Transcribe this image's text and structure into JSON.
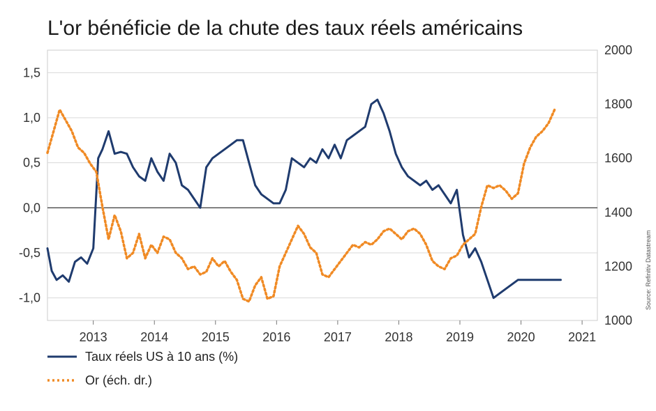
{
  "chart_data": {
    "type": "line",
    "title": "L'or bénéficie de la chute des taux réels américains",
    "source": "Source: Refinitiv Datastream",
    "x_ticks": [
      "2013",
      "2014",
      "2015",
      "2016",
      "2017",
      "2018",
      "2019",
      "2020",
      "2021"
    ],
    "y_left": {
      "ticks": [
        "1,5",
        "1,0",
        "0,5",
        "0,0",
        "-0,5",
        "-1,0"
      ],
      "values": [
        1.5,
        1.0,
        0.5,
        0.0,
        -0.5,
        -1.0
      ],
      "lim": [
        -1.25,
        1.75
      ]
    },
    "y_right": {
      "ticks": [
        "2000",
        "1800",
        "1600",
        "1400",
        "1200",
        "1000"
      ],
      "values": [
        2000,
        1800,
        1600,
        1400,
        1200,
        1000
      ],
      "lim": [
        1000,
        2000
      ]
    },
    "xlim": [
      2012.25,
      2021.25
    ],
    "grid": "horizontal",
    "legend": "bottom-left",
    "series": [
      {
        "name": "Taux réels US à 10 ans (%)",
        "axis": "left",
        "color": "#1f3b6e",
        "style": "solid",
        "x": [
          2012.25,
          2012.32,
          2012.4,
          2012.5,
          2012.6,
          2012.7,
          2012.8,
          2012.9,
          2013.0,
          2013.08,
          2013.15,
          2013.25,
          2013.35,
          2013.45,
          2013.55,
          2013.65,
          2013.75,
          2013.85,
          2013.95,
          2014.05,
          2014.15,
          2014.25,
          2014.35,
          2014.45,
          2014.55,
          2014.65,
          2014.75,
          2014.85,
          2014.95,
          2015.05,
          2015.15,
          2015.25,
          2015.35,
          2015.45,
          2015.55,
          2015.65,
          2015.75,
          2015.85,
          2015.95,
          2016.05,
          2016.15,
          2016.25,
          2016.35,
          2016.45,
          2016.55,
          2016.65,
          2016.75,
          2016.85,
          2016.95,
          2017.05,
          2017.15,
          2017.25,
          2017.35,
          2017.45,
          2017.55,
          2017.65,
          2017.75,
          2017.85,
          2017.95,
          2018.05,
          2018.15,
          2018.25,
          2018.35,
          2018.45,
          2018.55,
          2018.65,
          2018.75,
          2018.85,
          2018.95,
          2019.05,
          2019.15,
          2019.25,
          2019.35,
          2019.45,
          2019.55,
          2019.65,
          2019.75,
          2019.85,
          2019.95,
          2020.05,
          2020.15,
          2020.25,
          2020.35,
          2020.45,
          2020.55,
          2020.65
        ],
        "y": [
          -0.45,
          -0.7,
          -0.8,
          -0.75,
          -0.82,
          -0.6,
          -0.55,
          -0.62,
          -0.45,
          0.55,
          0.65,
          0.85,
          0.6,
          0.62,
          0.6,
          0.45,
          0.35,
          0.3,
          0.55,
          0.4,
          0.3,
          0.6,
          0.5,
          0.25,
          0.2,
          0.1,
          0.0,
          0.45,
          0.55,
          0.6,
          0.65,
          0.7,
          0.75,
          0.75,
          0.5,
          0.25,
          0.15,
          0.1,
          0.05,
          0.05,
          0.2,
          0.55,
          0.5,
          0.45,
          0.55,
          0.5,
          0.65,
          0.55,
          0.7,
          0.55,
          0.75,
          0.8,
          0.85,
          0.9,
          1.15,
          1.2,
          1.05,
          0.85,
          0.6,
          0.45,
          0.35,
          0.3,
          0.25,
          0.3,
          0.2,
          0.25,
          0.15,
          0.05,
          0.2,
          -0.3,
          -0.55,
          -0.45,
          -0.6,
          -0.8,
          -1.0,
          -0.95,
          -0.9,
          -0.85,
          -0.8,
          -0.8,
          -0.8,
          -0.8,
          -0.8,
          -0.8,
          -0.8,
          -0.8
        ]
      },
      {
        "name": "Or (éch. dr.)",
        "axis": "right",
        "color": "#f08a24",
        "style": "dotted",
        "x": [
          2012.25,
          2012.35,
          2012.45,
          2012.55,
          2012.65,
          2012.75,
          2012.85,
          2012.95,
          2013.05,
          2013.15,
          2013.25,
          2013.35,
          2013.45,
          2013.55,
          2013.65,
          2013.75,
          2013.85,
          2013.95,
          2014.05,
          2014.15,
          2014.25,
          2014.35,
          2014.45,
          2014.55,
          2014.65,
          2014.75,
          2014.85,
          2014.95,
          2015.05,
          2015.15,
          2015.25,
          2015.35,
          2015.45,
          2015.55,
          2015.65,
          2015.75,
          2015.85,
          2015.95,
          2016.05,
          2016.15,
          2016.25,
          2016.35,
          2016.45,
          2016.55,
          2016.65,
          2016.75,
          2016.85,
          2016.95,
          2017.05,
          2017.15,
          2017.25,
          2017.35,
          2017.45,
          2017.55,
          2017.65,
          2017.75,
          2017.85,
          2017.95,
          2018.05,
          2018.15,
          2018.25,
          2018.35,
          2018.45,
          2018.55,
          2018.65,
          2018.75,
          2018.85,
          2018.95,
          2019.05,
          2019.15,
          2019.25,
          2019.35,
          2019.45,
          2019.55,
          2019.65,
          2019.75,
          2019.85,
          2019.95,
          2020.05,
          2020.15,
          2020.25,
          2020.35,
          2020.45,
          2020.55
        ],
        "y": [
          1620,
          1700,
          1780,
          1740,
          1700,
          1640,
          1620,
          1580,
          1550,
          1420,
          1300,
          1390,
          1330,
          1230,
          1250,
          1320,
          1230,
          1280,
          1250,
          1310,
          1300,
          1250,
          1230,
          1190,
          1200,
          1170,
          1180,
          1230,
          1200,
          1220,
          1180,
          1150,
          1080,
          1070,
          1130,
          1160,
          1080,
          1090,
          1200,
          1250,
          1300,
          1350,
          1320,
          1270,
          1250,
          1170,
          1160,
          1190,
          1220,
          1250,
          1280,
          1270,
          1290,
          1280,
          1300,
          1330,
          1340,
          1320,
          1300,
          1330,
          1340,
          1320,
          1280,
          1220,
          1200,
          1190,
          1230,
          1240,
          1280,
          1300,
          1320,
          1420,
          1500,
          1490,
          1500,
          1480,
          1450,
          1470,
          1580,
          1640,
          1680,
          1700,
          1730,
          1780
        ]
      }
    ]
  },
  "legend": {
    "items": [
      {
        "label": "Taux réels US à 10 ans (%)"
      },
      {
        "label": "Or (éch. dr.)"
      }
    ]
  }
}
